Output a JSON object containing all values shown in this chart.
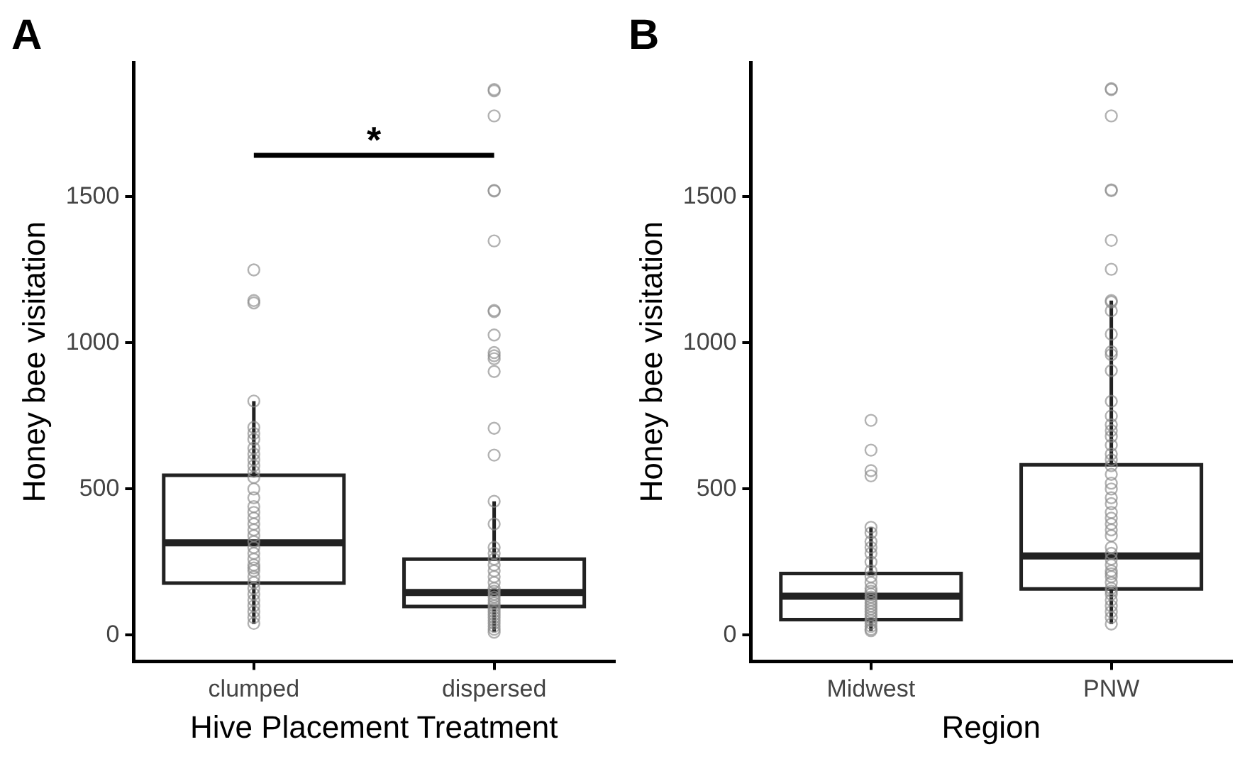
{
  "chart_data": [
    {
      "type": "box",
      "title": "A",
      "xlabel": "Hive Placement Treatment",
      "ylabel": "Honey bee visitation",
      "categories": [
        "clumped",
        "dispersed"
      ],
      "ylim": [
        -90,
        1960
      ],
      "yticks": [
        0,
        500,
        1000,
        1500
      ],
      "grid": false,
      "annotations": [
        "*"
      ],
      "series": [
        {
          "type": "box",
          "color": "#222222",
          "boxes": [
            {
              "low": 38,
              "q1": 178,
              "median": 316,
              "q3": 547,
              "high": 801
            },
            {
              "low": 10,
              "q1": 98,
              "median": 146,
              "q3": 260,
              "high": 458
            }
          ]
        },
        {
          "type": "scatter",
          "color": "#8c8c8c",
          "marker": "circle",
          "x": [
            "clumped",
            "clumped",
            "clumped",
            "clumped",
            "clumped",
            "clumped",
            "clumped",
            "clumped",
            "clumped",
            "clumped",
            "clumped",
            "clumped",
            "clumped",
            "clumped",
            "clumped",
            "clumped",
            "clumped",
            "clumped",
            "clumped",
            "clumped",
            "clumped",
            "clumped",
            "clumped",
            "clumped",
            "clumped",
            "clumped",
            "clumped",
            "clumped",
            "clumped",
            "clumped",
            "clumped",
            "clumped",
            "clumped",
            "clumped",
            "clumped",
            "clumped",
            "clumped",
            "dispersed",
            "dispersed",
            "dispersed",
            "dispersed",
            "dispersed",
            "dispersed",
            "dispersed",
            "dispersed",
            "dispersed",
            "dispersed",
            "dispersed",
            "dispersed",
            "dispersed",
            "dispersed",
            "dispersed",
            "dispersed",
            "dispersed",
            "dispersed",
            "dispersed",
            "dispersed",
            "dispersed",
            "dispersed",
            "dispersed",
            "dispersed",
            "dispersed",
            "dispersed",
            "dispersed",
            "dispersed",
            "dispersed",
            "dispersed",
            "dispersed",
            "dispersed",
            "dispersed",
            "dispersed",
            "dispersed",
            "dispersed",
            "dispersed",
            "dispersed",
            "dispersed",
            "dispersed"
          ],
          "values": [
            1250,
            1145,
            1137,
            801,
            711,
            690,
            670,
            640,
            620,
            600,
            580,
            560,
            540,
            500,
            470,
            440,
            420,
            400,
            380,
            360,
            340,
            320,
            300,
            280,
            260,
            240,
            230,
            220,
            200,
            180,
            160,
            140,
            120,
            100,
            80,
            60,
            40,
            1867,
            1863,
            1777,
            1522,
            1520,
            1349,
            1111,
            1107,
            1027,
            967,
            956,
            946,
            902,
            708,
            616,
            458,
            380,
            300,
            280,
            260,
            240,
            220,
            200,
            180,
            160,
            150,
            140,
            130,
            120,
            110,
            100,
            90,
            80,
            70,
            60,
            50,
            40,
            30,
            20,
            10
          ]
        }
      ]
    },
    {
      "type": "box",
      "title": "B",
      "xlabel": "Region",
      "ylabel": "Honey bee visitation",
      "categories": [
        "Midwest",
        "PNW"
      ],
      "ylim": [
        -90,
        1960
      ],
      "yticks": [
        0,
        500,
        1000,
        1500
      ],
      "grid": false,
      "series": [
        {
          "type": "box",
          "color": "#222222",
          "boxes": [
            {
              "low": 15,
              "q1": 53,
              "median": 133,
              "q3": 211,
              "high": 369
            },
            {
              "low": 38,
              "q1": 158,
              "median": 271,
              "q3": 583,
              "high": 1145
            }
          ]
        },
        {
          "type": "scatter",
          "color": "#8c8c8c",
          "marker": "circle",
          "x": [
            "Midwest",
            "Midwest",
            "Midwest",
            "Midwest",
            "Midwest",
            "Midwest",
            "Midwest",
            "Midwest",
            "Midwest",
            "Midwest",
            "Midwest",
            "Midwest",
            "Midwest",
            "Midwest",
            "Midwest",
            "Midwest",
            "Midwest",
            "Midwest",
            "Midwest",
            "Midwest",
            "Midwest",
            "Midwest",
            "Midwest",
            "Midwest",
            "Midwest",
            "Midwest",
            "Midwest",
            "Midwest",
            "Midwest",
            "PNW",
            "PNW",
            "PNW",
            "PNW",
            "PNW",
            "PNW",
            "PNW",
            "PNW",
            "PNW",
            "PNW",
            "PNW",
            "PNW",
            "PNW",
            "PNW",
            "PNW",
            "PNW",
            "PNW",
            "PNW",
            "PNW",
            "PNW",
            "PNW",
            "PNW",
            "PNW",
            "PNW",
            "PNW",
            "PNW",
            "PNW",
            "PNW",
            "PNW",
            "PNW",
            "PNW",
            "PNW",
            "PNW",
            "PNW",
            "PNW",
            "PNW",
            "PNW",
            "PNW",
            "PNW",
            "PNW",
            "PNW",
            "PNW",
            "PNW",
            "PNW",
            "PNW",
            "PNW",
            "PNW",
            "PNW",
            "PNW"
          ],
          "values": [
            735,
            633,
            563,
            545,
            369,
            350,
            320,
            300,
            280,
            250,
            220,
            200,
            180,
            160,
            150,
            140,
            130,
            120,
            110,
            100,
            90,
            80,
            70,
            60,
            50,
            40,
            30,
            20,
            15,
            1870,
            1867,
            1777,
            1524,
            1521,
            1351,
            1252,
            1145,
            1140,
            1110,
            1030,
            970,
            960,
            905,
            800,
            750,
            720,
            700,
            680,
            650,
            620,
            600,
            580,
            550,
            520,
            500,
            470,
            450,
            420,
            400,
            380,
            360,
            340,
            300,
            280,
            260,
            240,
            220,
            210,
            200,
            180,
            160,
            150,
            140,
            120,
            100,
            80,
            60,
            38
          ]
        }
      ]
    }
  ]
}
